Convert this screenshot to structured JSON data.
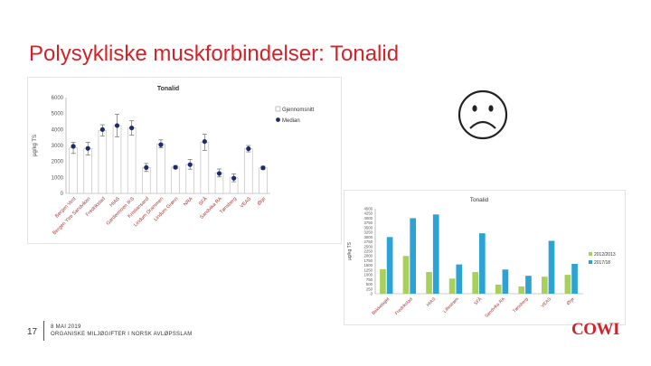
{
  "slide": {
    "title": "Polysykliske muskforbindelser: Tonalid",
    "page_number": "17",
    "footer_line1": "8 MAI 2019",
    "footer_line2": "ORGANISKE MILJØGIFTER I NORSK AVLØPSSLAM",
    "logo_text": "COWI",
    "sad_face_icon": "sad-face-icon"
  },
  "chart_data": [
    {
      "type": "bar",
      "title": "Tonalid",
      "ylabel": "µg/kg TS",
      "ylim": [
        0,
        6000
      ],
      "yticks": [
        0,
        1000,
        2000,
        3000,
        4000,
        5000,
        6000
      ],
      "categories": [
        "Bergen Vest",
        "Bergen Ytre Sandviken",
        "Fredrikstad",
        "HIAS",
        "Gardermoen IKS",
        "Kristiansand",
        "Lindum Drammen",
        "Lindum Grønn",
        "NRA",
        "SFÅ",
        "Sandvika RA",
        "Tønsberg",
        "VEAS",
        "Ørje"
      ],
      "series": [
        {
          "name": "Gjennomsnitt",
          "values": [
            2850,
            2800,
            3950,
            4250,
            4100,
            1620,
            3100,
            1650,
            1820,
            3200,
            1280,
            980,
            2800,
            1600
          ],
          "color": "#ffffff",
          "error": [
            350,
            400,
            350,
            700,
            450,
            250,
            250,
            100,
            300,
            500,
            250,
            250,
            200,
            100
          ]
        },
        {
          "name": "Median",
          "values": [
            2950,
            2820,
            4000,
            4250,
            4100,
            1620,
            3050,
            1630,
            1800,
            3250,
            1250,
            950,
            2800,
            1600
          ],
          "color": "#1f2a6b"
        }
      ],
      "legend_position": "right",
      "grid": false
    },
    {
      "type": "bar",
      "title": "Tonalid",
      "ylabel": "µg/kg TS",
      "ylim": [
        0,
        4500
      ],
      "yticks": [
        0,
        250,
        500,
        750,
        1000,
        1250,
        1500,
        1750,
        2000,
        2250,
        2500,
        2750,
        3000,
        3250,
        3500,
        3750,
        4000,
        4250,
        4500
      ],
      "categories": [
        "Bekkelaget",
        "Fredrikstad",
        "HIAS",
        "Lillestrøm",
        "SFÅ",
        "Sandvika RA",
        "Tønsberg",
        "VEAS",
        "Ørje"
      ],
      "series": [
        {
          "name": "2012/2013",
          "values": [
            1300,
            2000,
            1150,
            800,
            1150,
            480,
            380,
            900,
            1000
          ],
          "color": "#a9d05c"
        },
        {
          "name": "2017/18",
          "values": [
            3000,
            4000,
            4200,
            1550,
            3200,
            1280,
            950,
            2800,
            1580
          ],
          "color": "#2ba3d6"
        }
      ],
      "legend_position": "right",
      "grid": false
    }
  ]
}
